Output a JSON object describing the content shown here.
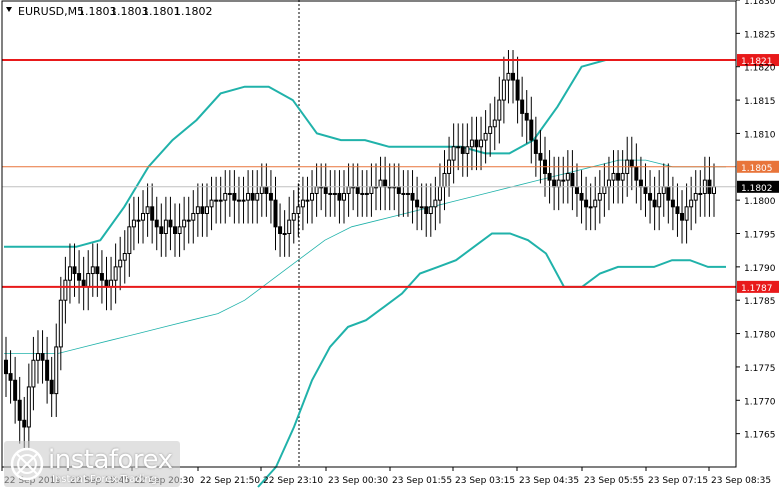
{
  "header": {
    "symbol": "EURUSD,M5",
    "open": "1.1803",
    "high": "1.1803",
    "low": "1.1801",
    "close": "1.1802"
  },
  "watermark": {
    "brand": "instaforex",
    "tagline": "Instant Forex Trading"
  },
  "colors": {
    "background": "#ffffff",
    "candle": "#000000",
    "bollinger": "#20b2aa",
    "moving_average": "#20b2aa",
    "support_resistance": "#e8191a",
    "pivot_line": "#e8743a",
    "price_label_bg": "#000000"
  },
  "chart_data": {
    "type": "candlestick",
    "ylim": [
      1.176,
      1.183
    ],
    "y_ticks": [
      "1.1830",
      "1.1825",
      "1.1820",
      "1.1815",
      "1.1810",
      "1.1800",
      "1.1795",
      "1.1790",
      "1.1785",
      "1.1780",
      "1.1775",
      "1.1770",
      "1.1765"
    ],
    "x_ticks": [
      "22 Sep 2019",
      "22 Sep 19:45",
      "22 Sep 20:30",
      "22 Sep 21:50",
      "22 Sep 23:10",
      "23 Sep 00:30",
      "23 Sep 01:55",
      "23 Sep 03:15",
      "23 Sep 04:35",
      "23 Sep 05:55",
      "23 Sep 07:15",
      "23 Sep 08:35"
    ],
    "horizontal_lines": [
      {
        "label": "1.1821",
        "value": 1.1821,
        "color": "#e8191a"
      },
      {
        "label": "1.1805",
        "value": 1.1805,
        "color": "#e8743a"
      },
      {
        "label": "1.1787",
        "value": 1.1787,
        "color": "#e8191a"
      }
    ],
    "current_price": {
      "label": "1.1802",
      "value": 1.1802
    },
    "close_series": [
      1.1774,
      1.1773,
      1.177,
      1.1767,
      1.1766,
      1.1772,
      1.1776,
      1.1777,
      1.1776,
      1.1773,
      1.1771,
      1.1778,
      1.1785,
      1.1788,
      1.179,
      1.1789,
      1.1788,
      1.1787,
      1.1789,
      1.179,
      1.1789,
      1.1788,
      1.1787,
      1.1788,
      1.179,
      1.1791,
      1.1792,
      1.1796,
      1.1797,
      1.1797,
      1.1798,
      1.1799,
      1.1797,
      1.1796,
      1.1795,
      1.1797,
      1.1796,
      1.1795,
      1.1796,
      1.1797,
      1.1797,
      1.1798,
      1.1799,
      1.1798,
      1.1799,
      1.18,
      1.18,
      1.18,
      1.1801,
      1.1801,
      1.18,
      1.18,
      1.18,
      1.1801,
      1.18,
      1.1801,
      1.1802,
      1.1801,
      1.18,
      1.1796,
      1.1795,
      1.1795,
      1.1797,
      1.1798,
      1.1799,
      1.18,
      1.18,
      1.1801,
      1.1802,
      1.1802,
      1.1801,
      1.1801,
      1.1801,
      1.18,
      1.1801,
      1.1802,
      1.1802,
      1.1801,
      1.1801,
      1.1801,
      1.1802,
      1.1802,
      1.1803,
      1.1802,
      1.1802,
      1.1802,
      1.1801,
      1.1801,
      1.1801,
      1.18,
      1.1799,
      1.1799,
      1.1798,
      1.1799,
      1.18,
      1.1802,
      1.1804,
      1.1806,
      1.1808,
      1.1808,
      1.1807,
      1.1808,
      1.1809,
      1.1808,
      1.1809,
      1.181,
      1.1811,
      1.1812,
      1.1815,
      1.1818,
      1.1819,
      1.1818,
      1.1815,
      1.1813,
      1.1812,
      1.1809,
      1.1807,
      1.1806,
      1.1804,
      1.1803,
      1.1802,
      1.1803,
      1.1803,
      1.1804,
      1.1802,
      1.1801,
      1.18,
      1.1799,
      1.1799,
      1.18,
      1.1801,
      1.1802,
      1.1803,
      1.1804,
      1.1803,
      1.1804,
      1.1806,
      1.1805,
      1.1803,
      1.1802,
      1.1801,
      1.18,
      1.1799,
      1.1801,
      1.1802,
      1.18,
      1.1799,
      1.1798,
      1.1797,
      1.1799,
      1.18,
      1.1801,
      1.1801,
      1.1803,
      1.1801,
      1.1802
    ],
    "bollinger_upper": [
      1.1793,
      1.1793,
      1.1793,
      1.1793,
      1.1794,
      1.1799,
      1.1805,
      1.1809,
      1.1812,
      1.1816,
      1.1817,
      1.1817,
      1.1815,
      1.181,
      1.1809,
      1.1809,
      1.1808,
      1.1808,
      1.1808,
      1.1808,
      1.1807,
      1.1807,
      1.1809,
      1.1814,
      1.182,
      1.1821,
      1.1821,
      1.1821,
      1.1821,
      1.1821,
      1.1821
    ],
    "bollinger_lower": [
      1.1757,
      1.176,
      1.1766,
      1.1773,
      1.1778,
      1.1781,
      1.1782,
      1.1784,
      1.1786,
      1.1789,
      1.179,
      1.1791,
      1.1793,
      1.1795,
      1.1795,
      1.1794,
      1.1792,
      1.1787,
      1.1787,
      1.1789,
      1.179,
      1.179,
      1.179,
      1.1791,
      1.1791,
      1.179,
      1.179
    ],
    "moving_average": [
      1.1777,
      1.1777,
      1.1777,
      1.1778,
      1.1779,
      1.178,
      1.1781,
      1.1782,
      1.1783,
      1.1785,
      1.1788,
      1.1791,
      1.1794,
      1.1796,
      1.1797,
      1.1798,
      1.1799,
      1.18,
      1.1801,
      1.1802,
      1.1803,
      1.1804,
      1.1805,
      1.1806,
      1.1806,
      1.1805,
      1.1805,
      1.1805
    ]
  }
}
